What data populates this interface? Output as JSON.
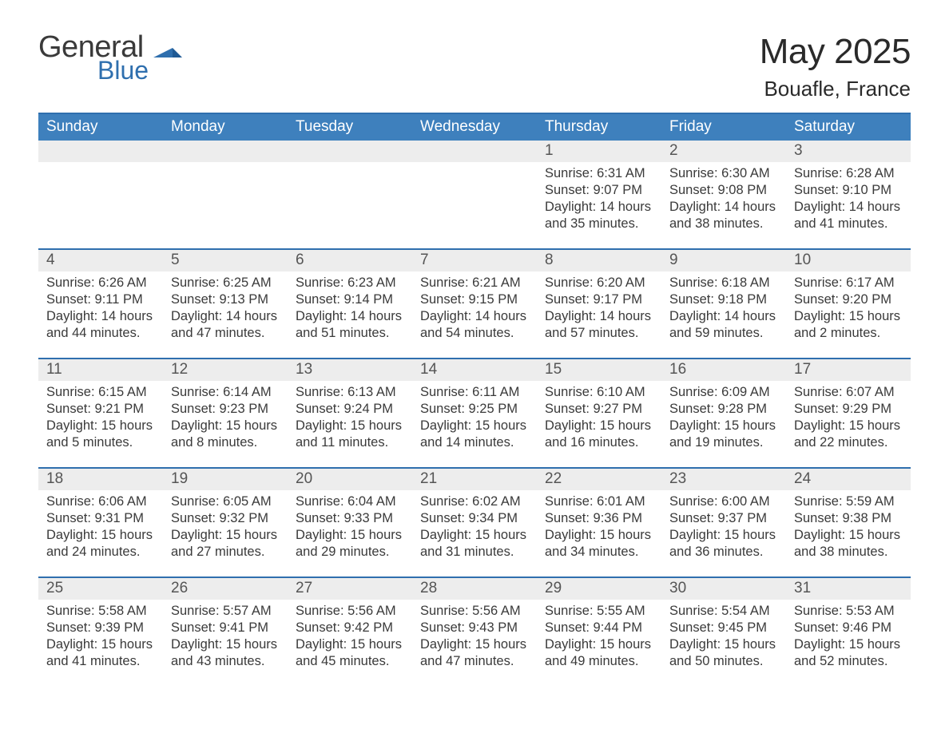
{
  "brand": {
    "general": "General",
    "blue": "Blue",
    "accent": "#2f6fae"
  },
  "title": "May 2025",
  "location": "Bouafle, France",
  "colors": {
    "header_bg": "#3e80bd",
    "header_text": "#ffffff",
    "rule": "#2f6fae",
    "daynum_bg": "#ededed",
    "body_text": "#3a3a3a"
  },
  "weekdays": [
    "Sunday",
    "Monday",
    "Tuesday",
    "Wednesday",
    "Thursday",
    "Friday",
    "Saturday"
  ],
  "weeks": [
    [
      null,
      null,
      null,
      null,
      {
        "n": "1",
        "sunrise": "6:31 AM",
        "sunset": "9:07 PM",
        "daylight": "14 hours and 35 minutes."
      },
      {
        "n": "2",
        "sunrise": "6:30 AM",
        "sunset": "9:08 PM",
        "daylight": "14 hours and 38 minutes."
      },
      {
        "n": "3",
        "sunrise": "6:28 AM",
        "sunset": "9:10 PM",
        "daylight": "14 hours and 41 minutes."
      }
    ],
    [
      {
        "n": "4",
        "sunrise": "6:26 AM",
        "sunset": "9:11 PM",
        "daylight": "14 hours and 44 minutes."
      },
      {
        "n": "5",
        "sunrise": "6:25 AM",
        "sunset": "9:13 PM",
        "daylight": "14 hours and 47 minutes."
      },
      {
        "n": "6",
        "sunrise": "6:23 AM",
        "sunset": "9:14 PM",
        "daylight": "14 hours and 51 minutes."
      },
      {
        "n": "7",
        "sunrise": "6:21 AM",
        "sunset": "9:15 PM",
        "daylight": "14 hours and 54 minutes."
      },
      {
        "n": "8",
        "sunrise": "6:20 AM",
        "sunset": "9:17 PM",
        "daylight": "14 hours and 57 minutes."
      },
      {
        "n": "9",
        "sunrise": "6:18 AM",
        "sunset": "9:18 PM",
        "daylight": "14 hours and 59 minutes."
      },
      {
        "n": "10",
        "sunrise": "6:17 AM",
        "sunset": "9:20 PM",
        "daylight": "15 hours and 2 minutes."
      }
    ],
    [
      {
        "n": "11",
        "sunrise": "6:15 AM",
        "sunset": "9:21 PM",
        "daylight": "15 hours and 5 minutes."
      },
      {
        "n": "12",
        "sunrise": "6:14 AM",
        "sunset": "9:23 PM",
        "daylight": "15 hours and 8 minutes."
      },
      {
        "n": "13",
        "sunrise": "6:13 AM",
        "sunset": "9:24 PM",
        "daylight": "15 hours and 11 minutes."
      },
      {
        "n": "14",
        "sunrise": "6:11 AM",
        "sunset": "9:25 PM",
        "daylight": "15 hours and 14 minutes."
      },
      {
        "n": "15",
        "sunrise": "6:10 AM",
        "sunset": "9:27 PM",
        "daylight": "15 hours and 16 minutes."
      },
      {
        "n": "16",
        "sunrise": "6:09 AM",
        "sunset": "9:28 PM",
        "daylight": "15 hours and 19 minutes."
      },
      {
        "n": "17",
        "sunrise": "6:07 AM",
        "sunset": "9:29 PM",
        "daylight": "15 hours and 22 minutes."
      }
    ],
    [
      {
        "n": "18",
        "sunrise": "6:06 AM",
        "sunset": "9:31 PM",
        "daylight": "15 hours and 24 minutes."
      },
      {
        "n": "19",
        "sunrise": "6:05 AM",
        "sunset": "9:32 PM",
        "daylight": "15 hours and 27 minutes."
      },
      {
        "n": "20",
        "sunrise": "6:04 AM",
        "sunset": "9:33 PM",
        "daylight": "15 hours and 29 minutes."
      },
      {
        "n": "21",
        "sunrise": "6:02 AM",
        "sunset": "9:34 PM",
        "daylight": "15 hours and 31 minutes."
      },
      {
        "n": "22",
        "sunrise": "6:01 AM",
        "sunset": "9:36 PM",
        "daylight": "15 hours and 34 minutes."
      },
      {
        "n": "23",
        "sunrise": "6:00 AM",
        "sunset": "9:37 PM",
        "daylight": "15 hours and 36 minutes."
      },
      {
        "n": "24",
        "sunrise": "5:59 AM",
        "sunset": "9:38 PM",
        "daylight": "15 hours and 38 minutes."
      }
    ],
    [
      {
        "n": "25",
        "sunrise": "5:58 AM",
        "sunset": "9:39 PM",
        "daylight": "15 hours and 41 minutes."
      },
      {
        "n": "26",
        "sunrise": "5:57 AM",
        "sunset": "9:41 PM",
        "daylight": "15 hours and 43 minutes."
      },
      {
        "n": "27",
        "sunrise": "5:56 AM",
        "sunset": "9:42 PM",
        "daylight": "15 hours and 45 minutes."
      },
      {
        "n": "28",
        "sunrise": "5:56 AM",
        "sunset": "9:43 PM",
        "daylight": "15 hours and 47 minutes."
      },
      {
        "n": "29",
        "sunrise": "5:55 AM",
        "sunset": "9:44 PM",
        "daylight": "15 hours and 49 minutes."
      },
      {
        "n": "30",
        "sunrise": "5:54 AM",
        "sunset": "9:45 PM",
        "daylight": "15 hours and 50 minutes."
      },
      {
        "n": "31",
        "sunrise": "5:53 AM",
        "sunset": "9:46 PM",
        "daylight": "15 hours and 52 minutes."
      }
    ]
  ],
  "labels": {
    "sunrise": "Sunrise: ",
    "sunset": "Sunset: ",
    "daylight": "Daylight: "
  }
}
